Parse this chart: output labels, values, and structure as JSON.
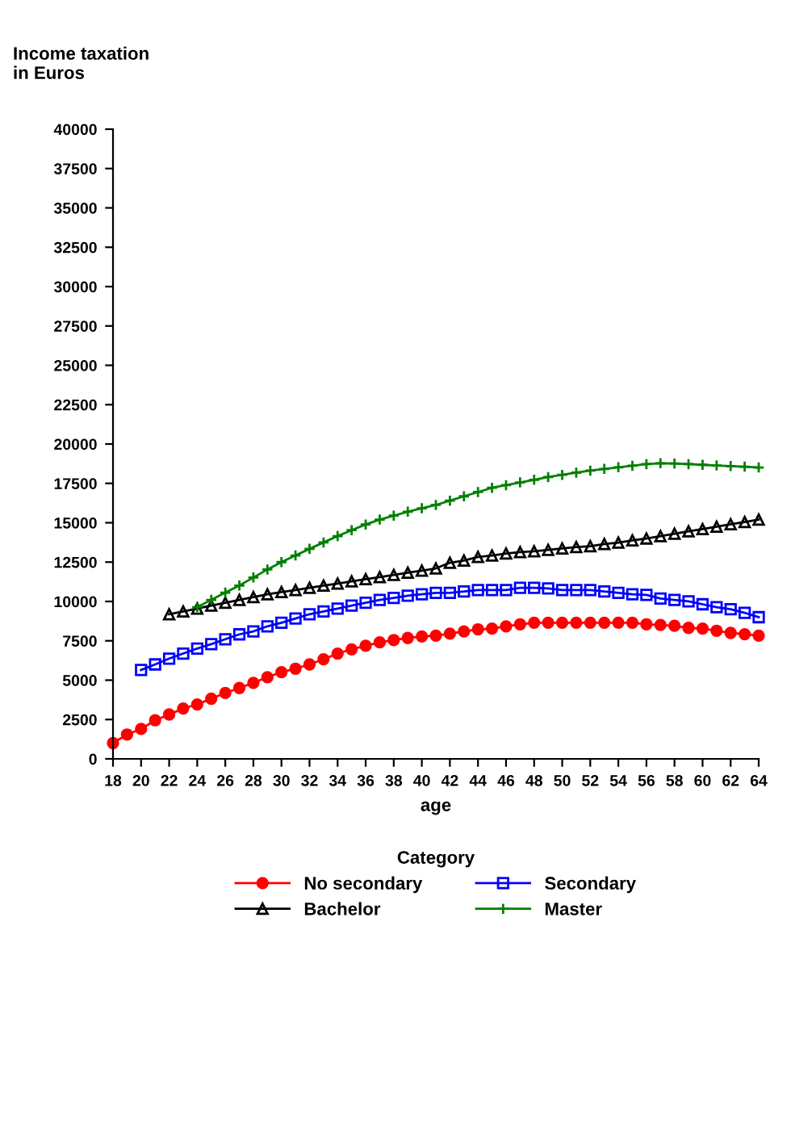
{
  "chart_data": {
    "type": "line",
    "xlabel": "age",
    "ylabel": "Income taxation\nin Euros",
    "legend_title": "Category",
    "legend": "bottom",
    "grid": false,
    "x": [
      18,
      19,
      20,
      21,
      22,
      23,
      24,
      25,
      26,
      27,
      28,
      29,
      30,
      31,
      32,
      33,
      34,
      35,
      36,
      37,
      38,
      39,
      40,
      41,
      42,
      43,
      44,
      45,
      46,
      47,
      48,
      49,
      50,
      51,
      52,
      53,
      54,
      55,
      56,
      57,
      58,
      59,
      60,
      61,
      62,
      63,
      64
    ],
    "xlim": [
      18,
      64
    ],
    "xticks": [
      18,
      20,
      22,
      24,
      26,
      28,
      30,
      32,
      34,
      36,
      38,
      40,
      42,
      44,
      46,
      48,
      50,
      52,
      54,
      56,
      58,
      60,
      62,
      64
    ],
    "ylim": [
      0,
      40000
    ],
    "yticks": [
      0,
      2500,
      5000,
      7500,
      10000,
      12500,
      15000,
      17500,
      20000,
      22500,
      25000,
      27500,
      30000,
      32500,
      35000,
      37500,
      40000
    ],
    "series": [
      {
        "name": "No secondary",
        "color": "#ff0000",
        "marker": "circle",
        "values": [
          1000,
          1550,
          1900,
          2450,
          2820,
          3200,
          3460,
          3820,
          4190,
          4500,
          4830,
          5190,
          5510,
          5730,
          6000,
          6330,
          6690,
          6960,
          7190,
          7400,
          7550,
          7680,
          7780,
          7830,
          7960,
          8100,
          8230,
          8280,
          8420,
          8550,
          8650,
          8650,
          8650,
          8650,
          8650,
          8650,
          8650,
          8650,
          8550,
          8510,
          8460,
          8320,
          8280,
          8140,
          8000,
          7920,
          7830
        ]
      },
      {
        "name": "Bachelor",
        "color": "#000000",
        "marker": "triangle",
        "values": [
          null,
          null,
          null,
          null,
          9190,
          9370,
          9550,
          9740,
          9920,
          10100,
          10280,
          10460,
          10600,
          10730,
          10870,
          11010,
          11140,
          11280,
          11420,
          11550,
          11690,
          11830,
          11960,
          12100,
          12460,
          12600,
          12830,
          12920,
          13050,
          13140,
          13190,
          13280,
          13370,
          13460,
          13510,
          13650,
          13740,
          13880,
          14000,
          14150,
          14300,
          14450,
          14600,
          14750,
          14900,
          15050,
          15200
        ]
      },
      {
        "name": "Secondary",
        "color": "#0000ff",
        "marker": "square",
        "values": [
          null,
          null,
          5650,
          6000,
          6370,
          6690,
          7010,
          7290,
          7600,
          7910,
          8100,
          8420,
          8650,
          8920,
          9190,
          9370,
          9550,
          9740,
          9920,
          10100,
          10230,
          10370,
          10460,
          10550,
          10550,
          10630,
          10730,
          10730,
          10730,
          10870,
          10870,
          10830,
          10730,
          10730,
          10730,
          10630,
          10550,
          10460,
          10420,
          10190,
          10100,
          10010,
          9820,
          9640,
          9510,
          9280,
          9000
        ]
      },
      {
        "name": "Master",
        "color": "#008000",
        "marker": "star",
        "values": [
          null,
          null,
          null,
          null,
          null,
          null,
          9640,
          10100,
          10560,
          11010,
          11520,
          12030,
          12500,
          12920,
          13340,
          13750,
          14150,
          14530,
          14890,
          15200,
          15450,
          15700,
          15920,
          16130,
          16400,
          16680,
          16950,
          17220,
          17390,
          17560,
          17730,
          17900,
          18040,
          18180,
          18310,
          18420,
          18520,
          18620,
          18720,
          18780,
          18760,
          18720,
          18680,
          18640,
          18600,
          18560,
          18510
        ]
      }
    ]
  }
}
